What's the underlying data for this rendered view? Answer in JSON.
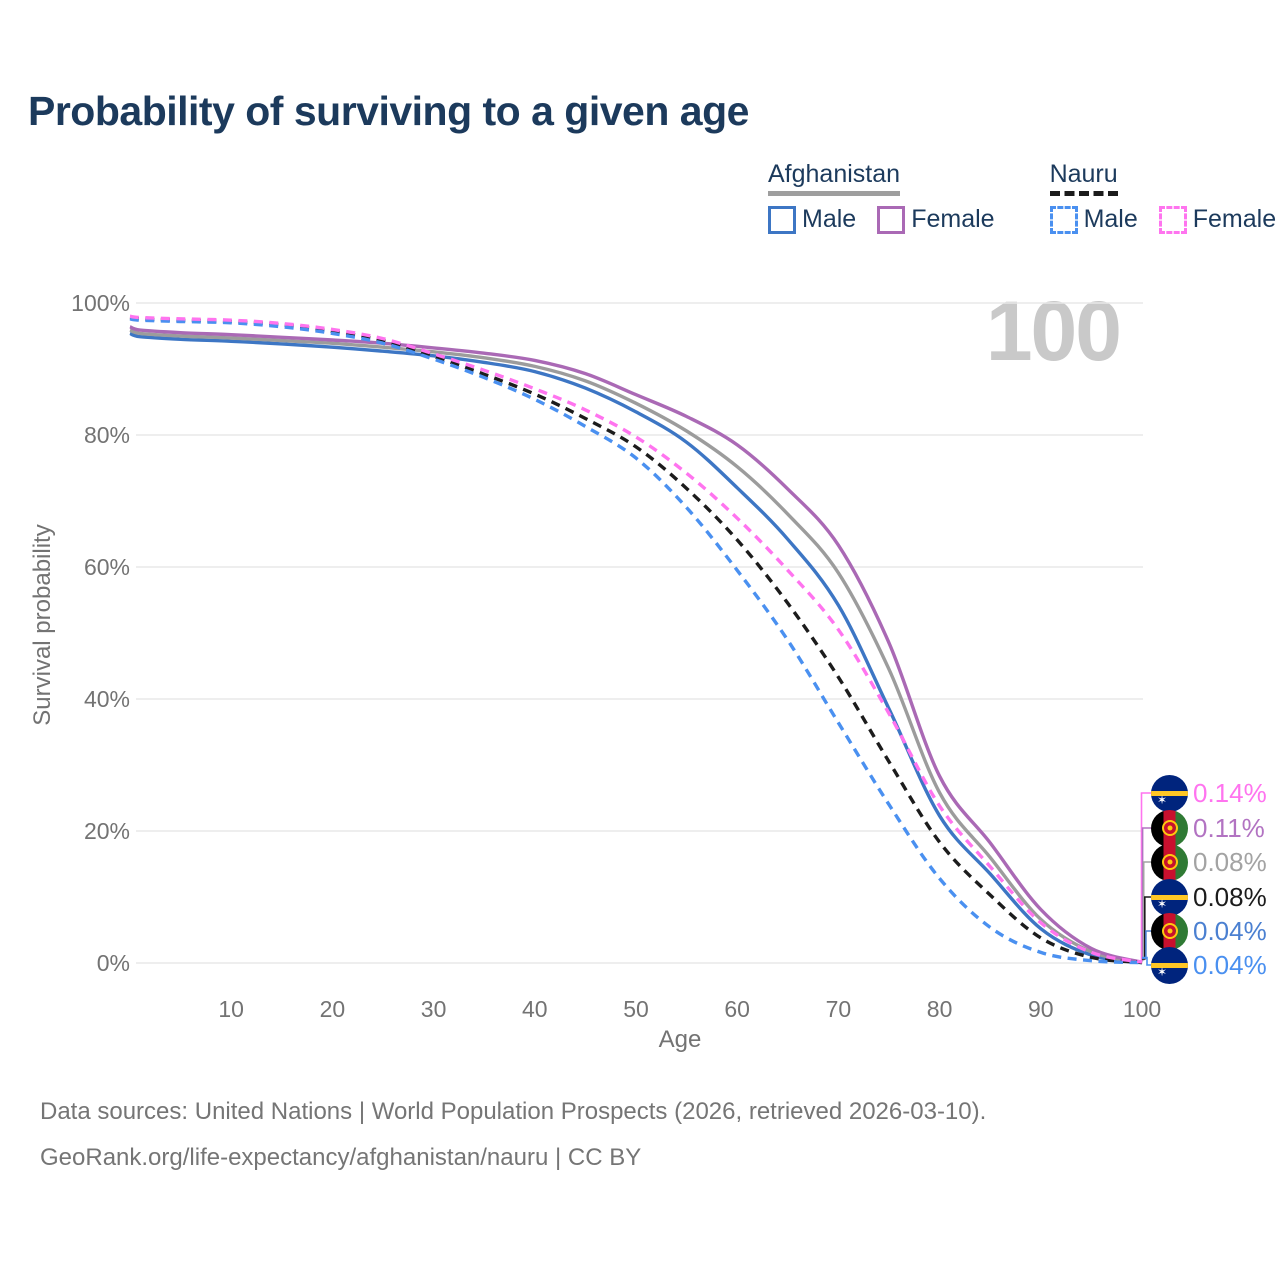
{
  "title": "Probability of surviving to a given age",
  "watermark": "100",
  "colors": {
    "title_text": "#1c3a5c",
    "axis_text": "#737373",
    "grid": "#e8e8e8",
    "watermark": "#c9c9c9",
    "afghanistan_male": "#3d76c4",
    "afghanistan_female": "#aa69b5",
    "afghanistan_both": "#9c9c9c",
    "nauru_male": "#4a90f0",
    "nauru_female": "#ff74ef",
    "nauru_both": "#1c1c1c"
  },
  "legend": {
    "groups": [
      {
        "country": "Afghanistan",
        "underline_style": "solid",
        "underline_color": "#9e9e9e",
        "items": [
          {
            "label": "Male",
            "color": "#3d76c4",
            "dashed": false
          },
          {
            "label": "Female",
            "color": "#aa69b5",
            "dashed": false
          }
        ]
      },
      {
        "country": "Nauru",
        "underline_style": "dashed",
        "underline_color": "#1c1c1c",
        "items": [
          {
            "label": "Male",
            "color": "#4a90f0",
            "dashed": true
          },
          {
            "label": "Female",
            "color": "#ff74ef",
            "dashed": true
          }
        ]
      }
    ]
  },
  "chart_data": {
    "type": "line",
    "title": "Probability of surviving to a given age",
    "xlabel": "Age",
    "ylabel": "Survival probability",
    "xlim": [
      0,
      100
    ],
    "ylim": [
      0,
      100
    ],
    "grid": "horizontal",
    "x_ticks": [
      10,
      20,
      30,
      40,
      50,
      60,
      70,
      80,
      90,
      100
    ],
    "y_ticks": [
      {
        "value": 0,
        "label": "0%"
      },
      {
        "value": 20,
        "label": "20%"
      },
      {
        "value": 40,
        "label": "40%"
      },
      {
        "value": 60,
        "label": "60%"
      },
      {
        "value": 80,
        "label": "80%"
      },
      {
        "value": 100,
        "label": "100%"
      }
    ],
    "x": [
      0,
      1,
      5,
      10,
      15,
      20,
      25,
      30,
      35,
      40,
      45,
      50,
      55,
      60,
      65,
      70,
      75,
      80,
      85,
      90,
      95,
      100
    ],
    "series": [
      {
        "name": "Afghanistan Male",
        "country": "Afghanistan",
        "sex": "male",
        "color": "#3d76c4",
        "dashed": false,
        "values": [
          95.4,
          94.9,
          94.5,
          94.2,
          93.8,
          93.3,
          92.7,
          92.0,
          91.0,
          89.6,
          87.1,
          83.5,
          78.9,
          72.0,
          64.2,
          54.2,
          38.5,
          22.3,
          13.5,
          5.2,
          1.2,
          0.04
        ]
      },
      {
        "name": "Afghanistan (both sexes)",
        "country": "Afghanistan",
        "sex": "both",
        "color": "#9c9c9c",
        "dashed": false,
        "values": [
          95.9,
          95.4,
          95.0,
          94.7,
          94.3,
          93.9,
          93.3,
          92.6,
          91.7,
          90.4,
          88.2,
          84.8,
          80.6,
          75.2,
          68.0,
          59.1,
          44.5,
          25.8,
          16.0,
          6.6,
          1.7,
          0.08
        ]
      },
      {
        "name": "Afghanistan Female",
        "country": "Afghanistan",
        "sex": "female",
        "color": "#aa69b5",
        "dashed": false,
        "values": [
          96.4,
          95.9,
          95.5,
          95.2,
          94.8,
          94.4,
          93.9,
          93.2,
          92.4,
          91.3,
          89.3,
          86.1,
          82.8,
          78.5,
          71.8,
          63.3,
          48.5,
          28.3,
          18.2,
          8.1,
          2.2,
          0.11
        ]
      },
      {
        "name": "Nauru (both sexes)",
        "country": "Nauru",
        "sex": "both",
        "color": "#1c1c1c",
        "dashed": true,
        "values": [
          97.8,
          97.6,
          97.4,
          97.2,
          96.7,
          95.7,
          94.3,
          91.9,
          89.2,
          86.2,
          82.5,
          78.2,
          71.9,
          64.1,
          54.5,
          43.3,
          30.5,
          18.3,
          10.3,
          3.8,
          0.85,
          0.08
        ]
      },
      {
        "name": "Nauru Male",
        "country": "Nauru",
        "sex": "male",
        "color": "#4a90f0",
        "dashed": true,
        "values": [
          97.6,
          97.4,
          97.2,
          97.0,
          96.4,
          95.4,
          93.9,
          91.5,
          88.7,
          85.4,
          81.3,
          76.5,
          69.0,
          59.5,
          48.9,
          36.4,
          24.0,
          12.8,
          5.4,
          1.6,
          0.35,
          0.04
        ]
      },
      {
        "name": "Nauru Female",
        "country": "Nauru",
        "sex": "female",
        "color": "#ff74ef",
        "dashed": true,
        "values": [
          98.0,
          97.8,
          97.6,
          97.4,
          96.9,
          96.0,
          94.6,
          92.3,
          89.8,
          87.0,
          83.8,
          79.7,
          74.2,
          67.4,
          59.5,
          50.5,
          37.8,
          23.8,
          14.6,
          6.1,
          1.6,
          0.14
        ]
      }
    ],
    "end_labels": [
      {
        "flag": "nauru",
        "series": "Nauru Female",
        "value": "0.14%",
        "color": "#ff74ef"
      },
      {
        "flag": "afghanistan",
        "series": "Afghanistan Female",
        "value": "0.11%",
        "color": "#b273c2"
      },
      {
        "flag": "afghanistan",
        "series": "Afghanistan (both sexes)",
        "value": "0.08%",
        "color": "#a3a3a3"
      },
      {
        "flag": "nauru",
        "series": "Nauru (both sexes)",
        "value": "0.08%",
        "color": "#1c1c1c"
      },
      {
        "flag": "afghanistan",
        "series": "Afghanistan Male",
        "value": "0.04%",
        "color": "#4b80d1"
      },
      {
        "flag": "nauru",
        "series": "Nauru Male",
        "value": "0.04%",
        "color": "#4a90f0"
      }
    ]
  },
  "footer": {
    "line1": "Data sources: United Nations | World Population Prospects (2026, retrieved 2026-03-10).",
    "line2": "GeoRank.org/life-expectancy/afghanistan/nauru | CC BY"
  }
}
